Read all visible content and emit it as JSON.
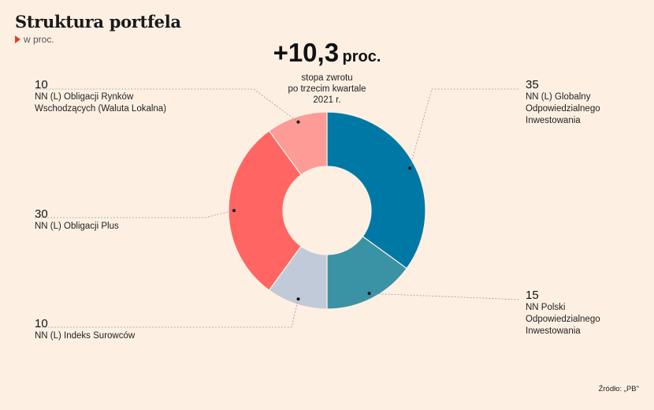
{
  "header": {
    "title": "Struktura portfela",
    "subtitle": "w proc."
  },
  "headline": {
    "value": "+10,3",
    "unit": "proc.",
    "note": [
      "stopa zwrotu",
      "po trzecim kwartale",
      "2021 r."
    ]
  },
  "source": "Źródło: „PB\"",
  "chart_data": {
    "type": "pie",
    "variant": "donut",
    "slices": [
      {
        "label": "NN (L) Globalny Odpowiedzialnego Inwestowania",
        "label_lines": [
          "NN (L) Globalny",
          "Odpowiedzialnego",
          "Inwestowania"
        ],
        "value": 35,
        "value_text": "35",
        "color": "#0078a6"
      },
      {
        "label": "NN Polski Odpowiedzialnego Inwestowania",
        "label_lines": [
          "NN Polski",
          "Odpowiedzialnego",
          "Inwestowania"
        ],
        "value": 15,
        "value_text": "15",
        "color": "#3a93a4"
      },
      {
        "label": "NN (L) Indeks Surowców",
        "label_lines": [
          "NN (L) Indeks Surowców"
        ],
        "value": 10,
        "value_text": "10",
        "color": "#c1cad8"
      },
      {
        "label": "NN (L) Obligacji Plus",
        "label_lines": [
          "NN (L) Obligacji Plus"
        ],
        "value": 30,
        "value_text": "30",
        "color": "#ff6663"
      },
      {
        "label": "NN (L) Obligacji Rynków Wschodzących (Waluta Lokalna)",
        "label_lines": [
          "NN (L) Obligacji Rynków",
          "Wschodzących (Waluta Lokalna)"
        ],
        "value": 10,
        "value_text": "10",
        "color": "#fd9b96"
      }
    ]
  }
}
